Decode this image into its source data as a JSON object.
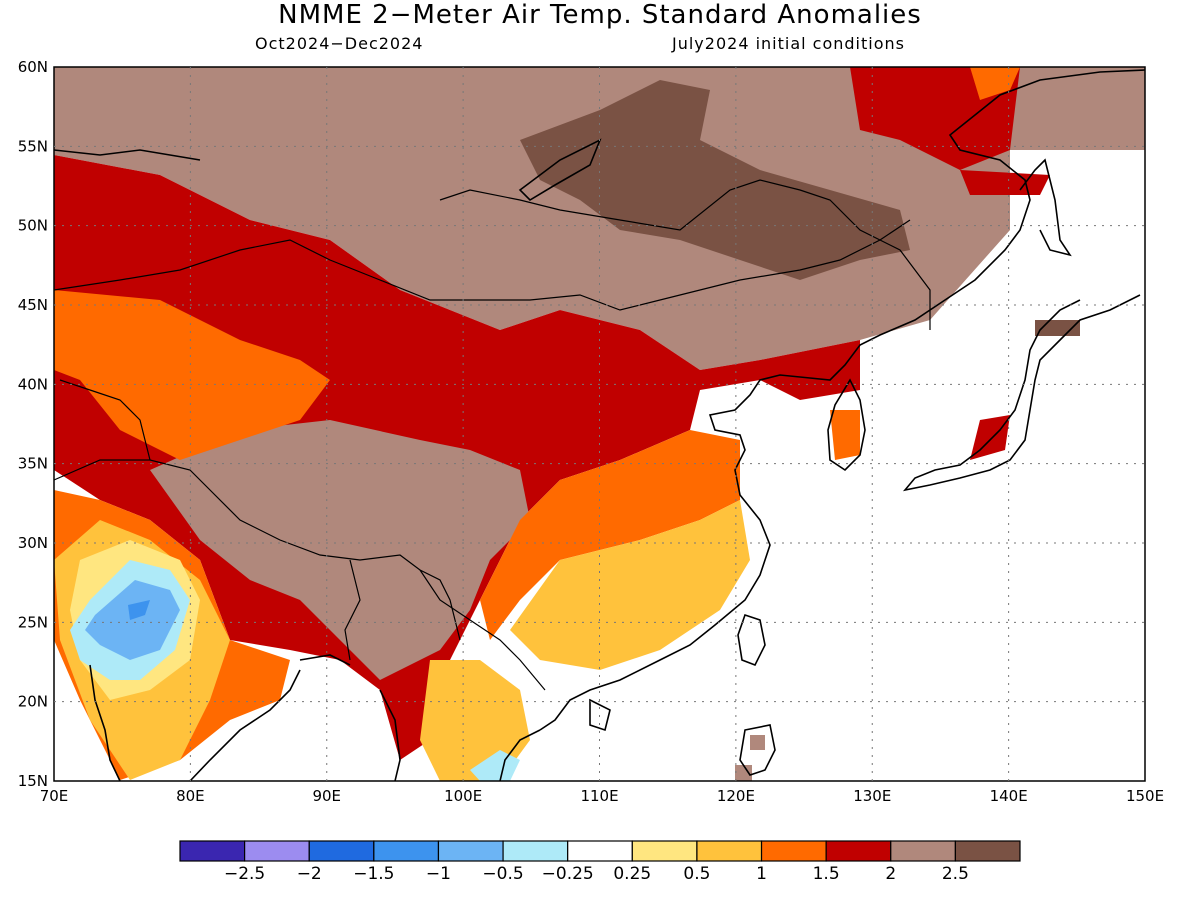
{
  "title": "NMME 2−Meter Air Temp. Standard Anomalies",
  "subtitle_left": "Oct2024−Dec2024",
  "subtitle_right": "July2024 initial conditions",
  "map": {
    "lon_range": [
      70,
      150
    ],
    "lat_range": [
      15,
      60
    ],
    "lon_ticks": [
      "70E",
      "80E",
      "90E",
      "100E",
      "110E",
      "120E",
      "130E",
      "140E",
      "150E"
    ],
    "lat_ticks": [
      "60N",
      "55N",
      "50N",
      "45N",
      "40N",
      "35N",
      "30N",
      "25N",
      "20N",
      "15N"
    ]
  },
  "colorbar": {
    "labels": [
      "−2.5",
      "−2",
      "−1.5",
      "−1",
      "−0.5",
      "−0.25",
      "0.25",
      "0.5",
      "1",
      "1.5",
      "2",
      "2.5"
    ],
    "colors": [
      "#3a26b0",
      "#9c8cf0",
      "#1f6ae0",
      "#3d93ee",
      "#6cb4f4",
      "#aeeaf8",
      "#ffffff",
      "#ffe680",
      "#ffc23c",
      "#ff6a00",
      "#c00000",
      "#b0887c",
      "#7a5244"
    ]
  }
}
